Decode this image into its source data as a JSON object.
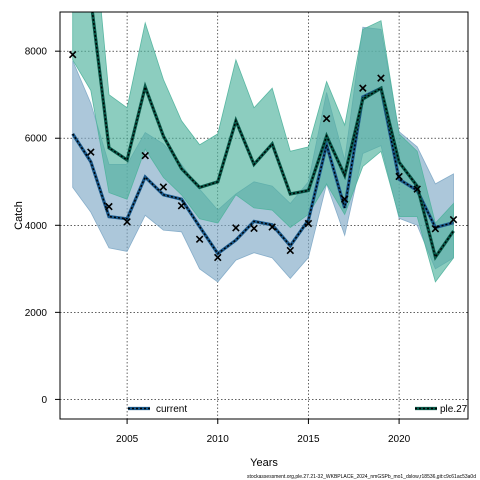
{
  "chart_data": {
    "type": "line",
    "xlabel": "Years",
    "ylabel": "Catch",
    "xlim": [
      2001.3,
      2023.8
    ],
    "ylim": [
      -450,
      8900
    ],
    "x_ticks": [
      2005,
      2010,
      2015,
      2020
    ],
    "y_ticks": [
      0,
      2000,
      4000,
      6000,
      8000
    ],
    "grid": true,
    "legend_position": "bottom",
    "x": [
      2002,
      2003,
      2004,
      2005,
      2006,
      2007,
      2008,
      2009,
      2010,
      2011,
      2012,
      2013,
      2014,
      2015,
      2016,
      2017,
      2018,
      2019,
      2020,
      2021,
      2022,
      2023
    ],
    "observed_points": {
      "x": [
        2002,
        2003,
        2004,
        2005,
        2006,
        2007,
        2008,
        2009,
        2010,
        2011,
        2012,
        2013,
        2014,
        2015,
        2016,
        2017,
        2018,
        2019,
        2020,
        2021,
        2022,
        2023
      ],
      "y": [
        7920,
        5680,
        4430,
        4080,
        5600,
        4880,
        4450,
        3680,
        3260,
        3940,
        3930,
        3960,
        3420,
        4040,
        6450,
        4600,
        7150,
        7380,
        5120,
        4830,
        3920,
        4130
      ]
    },
    "series": [
      {
        "name": "current",
        "color": "#1b5a8c",
        "fill": "#80a9c6",
        "median": [
          6100,
          5460,
          4200,
          4150,
          5110,
          4700,
          4600,
          3970,
          3350,
          3660,
          4090,
          4010,
          3530,
          4120,
          5850,
          4400,
          6950,
          7150,
          5060,
          4800,
          3950,
          4060
        ],
        "lower": [
          4870,
          4300,
          3480,
          3400,
          4230,
          3890,
          3850,
          3000,
          2700,
          3200,
          3370,
          3250,
          2780,
          3260,
          4950,
          3770,
          5650,
          5830,
          4160,
          4000,
          3000,
          3250
        ],
        "upper": [
          7780,
          6800,
          5400,
          5400,
          6130,
          5870,
          5400,
          4830,
          4350,
          4720,
          5000,
          4900,
          4500,
          5000,
          7050,
          5500,
          8550,
          8500,
          6150,
          5800,
          4950,
          5180
        ]
      },
      {
        "name": "ple.27",
        "color": "#0a5a4a",
        "fill": "#4fb29c",
        "median": [
          9800,
          9200,
          5780,
          5500,
          7180,
          6050,
          5300,
          4870,
          5000,
          6400,
          5400,
          5870,
          4720,
          4800,
          6050,
          5150,
          6900,
          7150,
          5450,
          4900,
          3270,
          3870
        ],
        "lower": [
          7800,
          7100,
          4750,
          4600,
          5750,
          5100,
          4700,
          4150,
          4050,
          4700,
          4400,
          4350,
          3950,
          4250,
          4950,
          4250,
          5350,
          5700,
          4200,
          4200,
          2700,
          3250
        ],
        "upper": [
          12000,
          11500,
          7000,
          6700,
          8650,
          7350,
          6400,
          5850,
          6100,
          7800,
          6700,
          7150,
          5700,
          5800,
          7300,
          6300,
          8500,
          8700,
          6100,
          5700,
          4050,
          4500
        ]
      }
    ]
  },
  "footer": {
    "text": "stockassessment.org,ple.27.21-32_WKBPLACE_2024_nmGSPb_mo1_dslow,r18536,git:c9c61ac53a0d"
  }
}
